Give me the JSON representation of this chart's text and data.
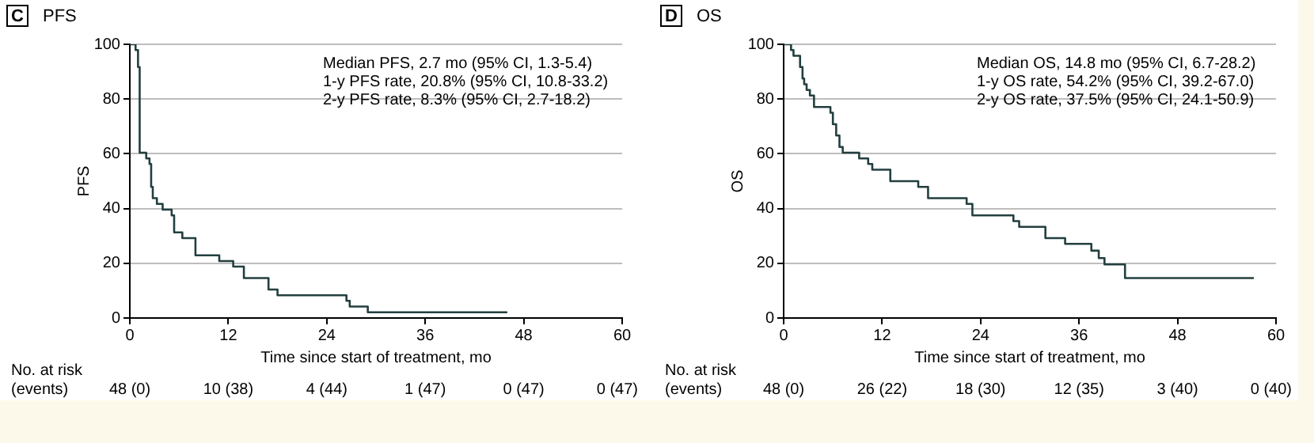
{
  "chart_data": [
    {
      "type": "step",
      "title": "PFS",
      "xlabel": "Time since start of treatment, mo",
      "ylabel": "PFS",
      "series": [
        {
          "color": "#233f3f",
          "x": [
            0,
            0.7,
            1.0,
            1.2,
            2.0,
            2.4,
            2.6,
            2.8,
            3.3,
            4.0,
            5.1,
            5.4,
            6.4,
            8.0,
            10.9,
            12.6,
            13.9,
            16.9,
            18.0,
            26.4,
            26.8,
            29.0,
            46.0
          ],
          "values": [
            100,
            97.9,
            91.7,
            60.4,
            58.3,
            56.3,
            47.9,
            43.8,
            41.7,
            39.6,
            37.5,
            31.3,
            29.2,
            22.9,
            20.8,
            18.8,
            14.6,
            10.4,
            8.3,
            6.3,
            4.2,
            2.1,
            2.1
          ]
        }
      ],
      "xlim": [
        0,
        60
      ],
      "xticks": [
        0,
        12,
        24,
        36,
        48,
        60
      ],
      "ylim": [
        0,
        100
      ],
      "yticks": [
        0,
        20,
        40,
        60,
        80,
        100
      ],
      "grid": "y",
      "marker": "none",
      "line_style": "solid",
      "annotations": [
        "C",
        "Median PFS, 2.7 mo (95% CI, 1.3-5.4)",
        "1-y PFS rate, 20.8% (95% CI, 10.8-33.2)",
        "2-y PFS rate, 8.3% (95% CI, 2.7-18.2)",
        "No. at risk",
        "(events)",
        "48 (0)",
        "10 (38)",
        "4 (44)",
        "1 (47)",
        "0 (47)",
        "0 (47)"
      ]
    },
    {
      "type": "step",
      "title": "OS",
      "xlabel": "Time since start of treatment, mo",
      "ylabel": "OS",
      "series": [
        {
          "color": "#233f3f",
          "x": [
            0,
            0.9,
            1.2,
            2.0,
            2.3,
            2.5,
            2.8,
            3.2,
            3.7,
            5.7,
            6.0,
            6.4,
            6.8,
            7.2,
            9.2,
            10.3,
            10.8,
            13.0,
            16.4,
            17.6,
            22.3,
            23.0,
            28.0,
            28.7,
            31.9,
            34.3,
            37.5,
            38.4,
            39.1,
            41.6,
            57.3
          ],
          "values": [
            100,
            97.9,
            95.8,
            91.7,
            87.5,
            85.4,
            83.3,
            81.3,
            77.1,
            75.0,
            70.8,
            66.7,
            62.5,
            60.4,
            58.3,
            56.3,
            54.2,
            50.0,
            47.9,
            43.8,
            41.7,
            37.5,
            35.4,
            33.3,
            29.2,
            27.1,
            24.6,
            21.9,
            19.6,
            14.6,
            14.6
          ]
        }
      ],
      "xlim": [
        0,
        60
      ],
      "xticks": [
        0,
        12,
        24,
        36,
        48,
        60
      ],
      "ylim": [
        0,
        100
      ],
      "yticks": [
        0,
        20,
        40,
        60,
        80,
        100
      ],
      "grid": "y",
      "marker": "none",
      "line_style": "solid",
      "annotations": [
        "D",
        "Median OS, 14.8 mo (95% CI, 6.7-28.2)",
        "1-y OS rate, 54.2% (95% CI, 39.2-67.0)",
        "2-y OS rate, 37.5% (95% CI, 24.1-50.9)",
        "No. at risk",
        "(events)",
        "48 (0)",
        "26 (22)",
        "18 (30)",
        "12 (35)",
        "3 (40)",
        "0 (40)"
      ]
    }
  ]
}
